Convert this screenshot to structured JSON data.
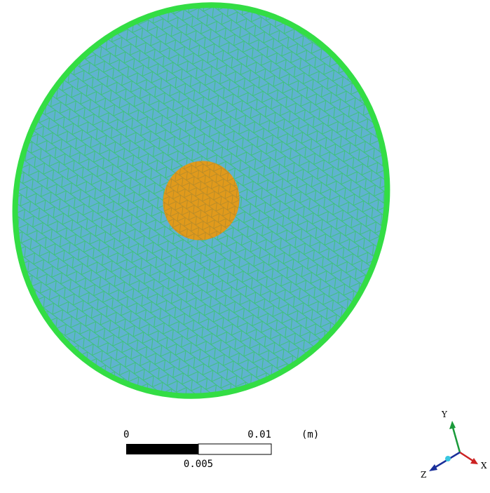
{
  "scale_bar": {
    "start": "0",
    "end": "0.01",
    "unit": "(m)",
    "middle": "0.005"
  },
  "triad": {
    "y": "Y",
    "x": "X",
    "z": "Z"
  }
}
